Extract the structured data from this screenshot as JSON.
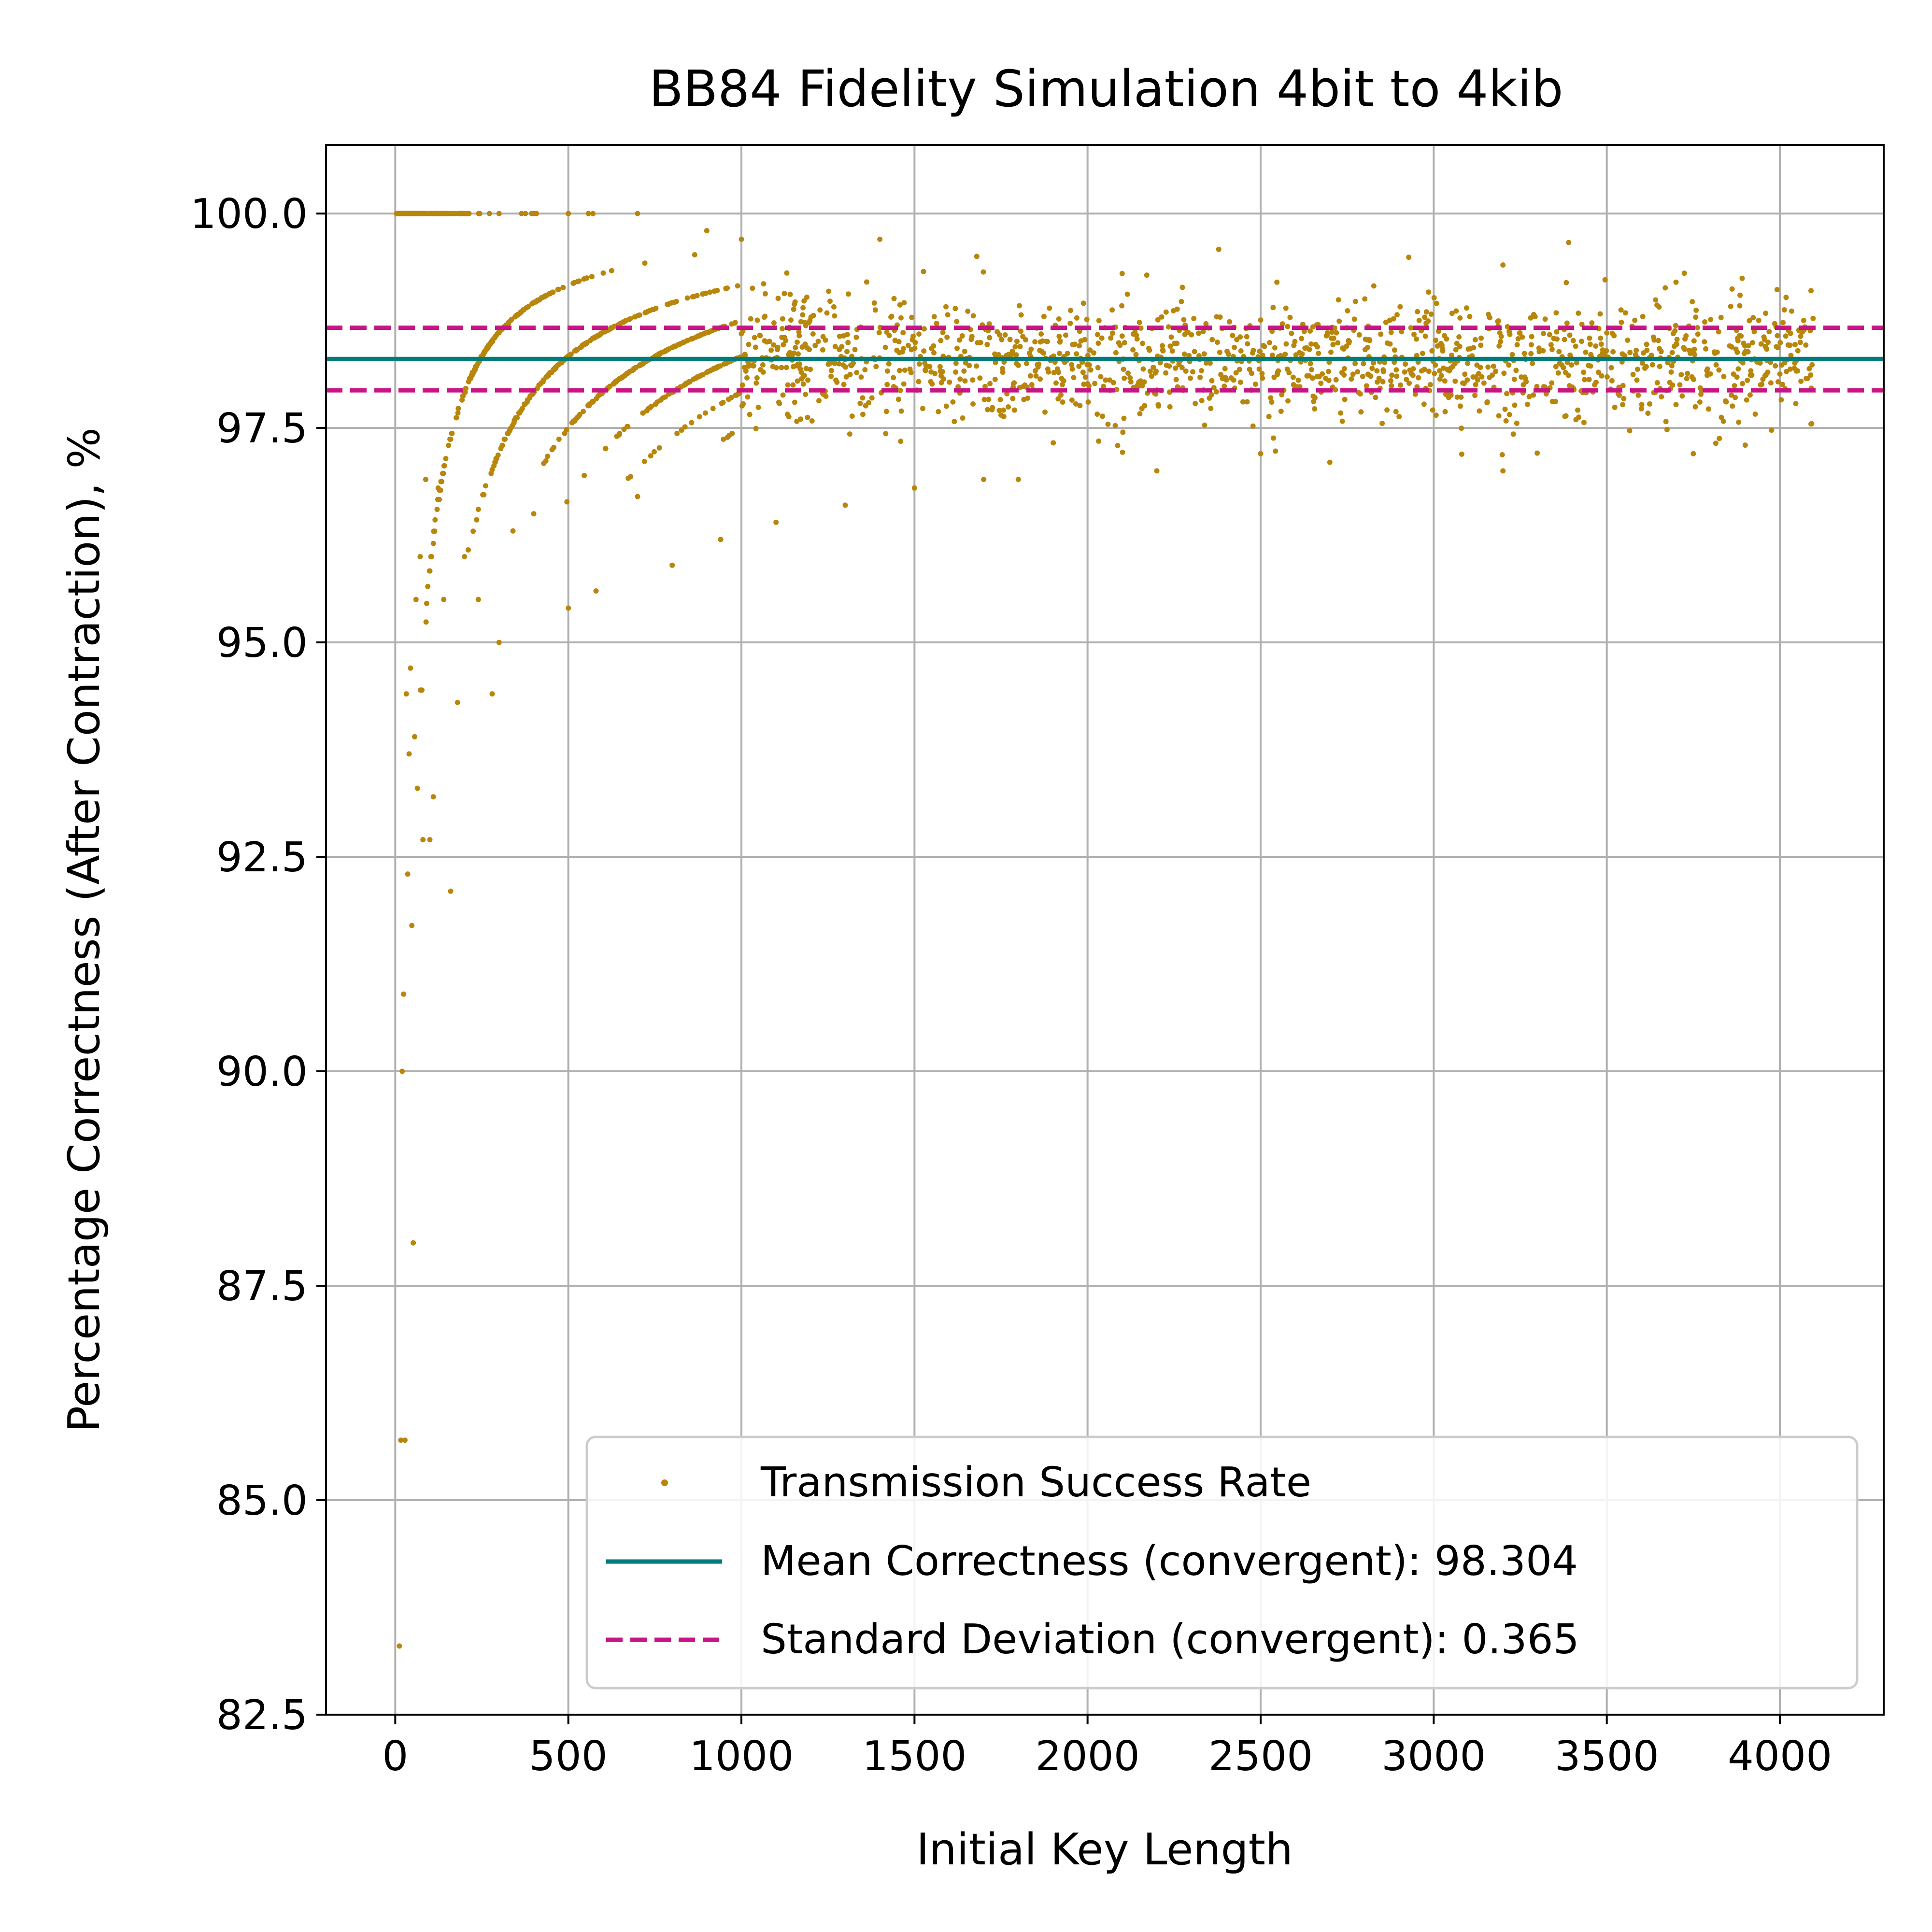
{
  "chart_data": {
    "type": "scatter",
    "title": "BB84 Fidelity Simulation 4bit to 4kib",
    "xlabel": "Initial Key Length",
    "ylabel": "Percentage Correctness (After Contraction), %",
    "xlim": [
      -200,
      4300
    ],
    "ylim": [
      82.5,
      100.8
    ],
    "xticks": [
      0,
      500,
      1000,
      1500,
      2000,
      2500,
      3000,
      3500,
      4000
    ],
    "xtick_labels": [
      "0",
      "500",
      "1000",
      "1500",
      "2000",
      "2500",
      "3000",
      "3500",
      "4000"
    ],
    "yticks": [
      82.5,
      85.0,
      87.5,
      90.0,
      92.5,
      95.0,
      97.5,
      100.0
    ],
    "ytick_labels": [
      "82.5",
      "85.0",
      "87.5",
      "90.0",
      "92.5",
      "95.0",
      "97.5",
      "100.0"
    ],
    "grid": true,
    "legend_position": "lower-right",
    "series": [
      {
        "name": "Transmission Success Rate",
        "kind": "scatter",
        "color": "#b8860b",
        "x_range": [
          4,
          4096
        ],
        "points": [
          [
            4,
            100.0
          ],
          [
            8,
            100.0
          ],
          [
            12,
            83.3
          ],
          [
            16,
            85.7
          ],
          [
            20,
            90.0
          ],
          [
            24,
            90.9
          ],
          [
            28,
            85.7
          ],
          [
            32,
            94.4
          ],
          [
            36,
            92.3
          ],
          [
            40,
            93.7
          ],
          [
            44,
            94.7
          ],
          [
            48,
            91.7
          ],
          [
            52,
            88.0
          ],
          [
            56,
            93.9
          ],
          [
            60,
            95.5
          ],
          [
            64,
            93.3
          ],
          [
            72,
            96.0
          ],
          [
            80,
            92.7
          ],
          [
            88,
            96.9
          ],
          [
            100,
            92.7
          ],
          [
            110,
            93.2
          ],
          [
            124,
            96.8
          ],
          [
            140,
            95.5
          ],
          [
            160,
            92.1
          ],
          [
            180,
            94.3
          ],
          [
            200,
            96.0
          ],
          [
            240,
            95.5
          ],
          [
            280,
            94.4
          ],
          [
            300,
            95.0
          ],
          [
            340,
            96.3
          ],
          [
            400,
            96.5
          ],
          [
            500,
            95.4
          ],
          [
            580,
            95.6
          ],
          [
            700,
            96.7
          ],
          [
            800,
            95.9
          ],
          [
            940,
            96.2
          ],
          [
            1100,
            96.4
          ],
          [
            1300,
            96.6
          ],
          [
            1500,
            96.8
          ],
          [
            1700,
            96.9
          ],
          [
            1800,
            96.9
          ],
          [
            2200,
            97.0
          ],
          [
            2500,
            97.2
          ],
          [
            2700,
            97.1
          ],
          [
            3200,
            97.0
          ],
          [
            3750,
            97.2
          ],
          [
            3900,
            97.3
          ],
          [
            300,
            100.0
          ],
          [
            400,
            100.0
          ],
          [
            500,
            100.0
          ],
          [
            700,
            100.0
          ],
          [
            900,
            99.8
          ],
          [
            1000,
            99.7
          ],
          [
            1400,
            99.7
          ],
          [
            1680,
            99.5
          ],
          [
            2100,
            99.3
          ],
          [
            3200,
            99.4
          ],
          [
            3700,
            99.2
          ],
          [
            4090,
            99.1
          ]
        ],
        "envelope": {
          "converged_center": 98.3,
          "converged_spread": 0.36
        }
      },
      {
        "name": "Mean Correctness (convergent): 98.304",
        "kind": "hline",
        "y": 98.304,
        "color": "#007b7b",
        "dash": "solid"
      },
      {
        "name": "Standard Deviation (convergent): 0.365",
        "kind": "hline",
        "y_values": [
          97.939,
          98.669
        ],
        "color": "#c71585",
        "dash": "dashed"
      }
    ]
  }
}
